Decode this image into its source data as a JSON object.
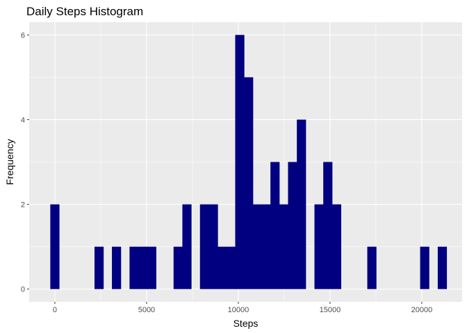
{
  "chart_data": {
    "type": "bar",
    "title": "Daily Steps Histogram",
    "xlabel": "Steps",
    "ylabel": "Frequency",
    "bin_width": 500,
    "xlim": [
      -1400,
      22200
    ],
    "ylim": [
      -0.3,
      6.3
    ],
    "x_ticks": [
      0,
      5000,
      10000,
      15000,
      20000
    ],
    "x_tick_labels": [
      "0",
      "5000",
      "10000",
      "15000",
      "20000"
    ],
    "y_ticks": [
      0,
      2,
      4,
      6
    ],
    "y_tick_labels": [
      "0",
      "2",
      "4",
      "6"
    ],
    "grid": true,
    "bar_color": "#000080",
    "panel_color": "#EBEBEB",
    "bins": [
      {
        "x": 0,
        "count": 2
      },
      {
        "x": 2410,
        "count": 1
      },
      {
        "x": 3360,
        "count": 1
      },
      {
        "x": 4320,
        "count": 1
      },
      {
        "x": 4800,
        "count": 1
      },
      {
        "x": 5280,
        "count": 1
      },
      {
        "x": 6720,
        "count": 1
      },
      {
        "x": 7200,
        "count": 2
      },
      {
        "x": 8160,
        "count": 2
      },
      {
        "x": 8640,
        "count": 2
      },
      {
        "x": 9120,
        "count": 1
      },
      {
        "x": 9600,
        "count": 1
      },
      {
        "x": 10080,
        "count": 6
      },
      {
        "x": 10560,
        "count": 5
      },
      {
        "x": 11040,
        "count": 2
      },
      {
        "x": 11520,
        "count": 2
      },
      {
        "x": 12000,
        "count": 3
      },
      {
        "x": 12480,
        "count": 2
      },
      {
        "x": 12960,
        "count": 3
      },
      {
        "x": 13440,
        "count": 4
      },
      {
        "x": 14400,
        "count": 2
      },
      {
        "x": 14880,
        "count": 3
      },
      {
        "x": 15360,
        "count": 2
      },
      {
        "x": 17280,
        "count": 1
      },
      {
        "x": 20160,
        "count": 1
      },
      {
        "x": 21120,
        "count": 1
      }
    ]
  }
}
